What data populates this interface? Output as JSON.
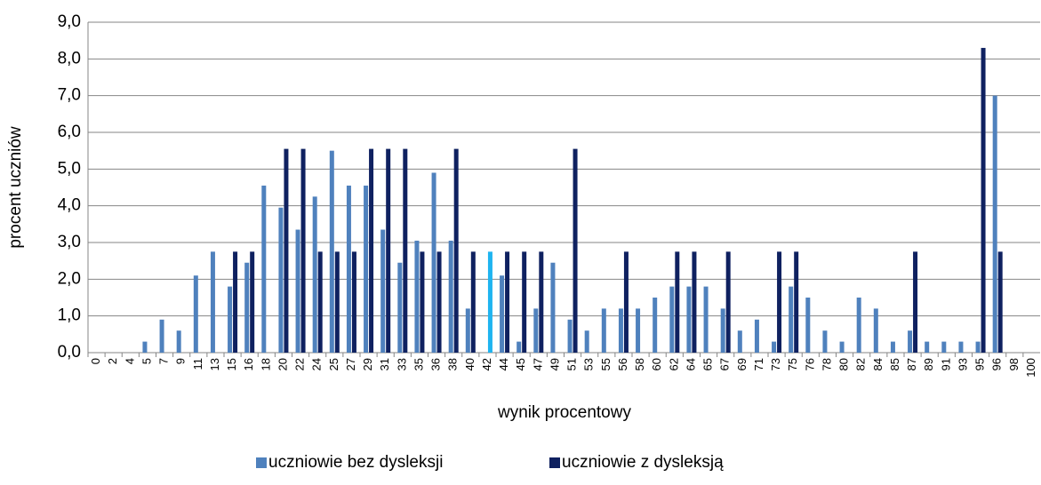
{
  "chart_data": {
    "type": "bar",
    "xlabel": "wynik procentowy",
    "ylabel": "procent uczniów",
    "categories": [
      "0",
      "2",
      "4",
      "5",
      "7",
      "9",
      "11",
      "13",
      "15",
      "16",
      "18",
      "20",
      "22",
      "24",
      "25",
      "27",
      "29",
      "31",
      "33",
      "35",
      "36",
      "38",
      "40",
      "42",
      "44",
      "45",
      "47",
      "49",
      "51",
      "53",
      "55",
      "56",
      "58",
      "60",
      "62",
      "64",
      "65",
      "67",
      "69",
      "71",
      "73",
      "75",
      "76",
      "78",
      "80",
      "82",
      "84",
      "85",
      "87",
      "89",
      "91",
      "93",
      "95",
      "96",
      "98",
      "100"
    ],
    "series": [
      {
        "name": "uczniowie bez dysleksji",
        "color": "#4f81bd",
        "values": [
          0,
          0,
          0,
          0.3,
          0.9,
          0.6,
          2.1,
          2.75,
          1.8,
          2.45,
          4.55,
          3.95,
          3.35,
          4.25,
          5.5,
          4.55,
          4.55,
          3.35,
          2.45,
          3.05,
          4.9,
          3.05,
          1.2,
          0,
          2.1,
          0.3,
          1.2,
          2.45,
          0.9,
          0.6,
          1.2,
          1.2,
          1.2,
          1.5,
          1.8,
          1.8,
          1.8,
          1.2,
          0.6,
          0.9,
          0.3,
          1.8,
          1.5,
          0.6,
          0.3,
          1.5,
          1.2,
          0.3,
          0.6,
          0.3,
          0.3,
          0.3,
          0.3,
          7.0,
          0,
          0
        ]
      },
      {
        "name": "uczniowie z dysleksją",
        "color": "#0f2160",
        "point_colors": {
          "23": "#1fb4f0"
        },
        "values": [
          0,
          0,
          0,
          0,
          0,
          0,
          0,
          0,
          2.75,
          2.75,
          0,
          5.55,
          5.55,
          2.75,
          2.75,
          2.75,
          5.55,
          5.55,
          5.55,
          2.75,
          2.75,
          5.55,
          2.75,
          2.75,
          2.75,
          2.75,
          2.75,
          0,
          5.55,
          0,
          0,
          2.75,
          0,
          0,
          2.75,
          2.75,
          0,
          2.75,
          0,
          0,
          2.75,
          2.75,
          0,
          0,
          0,
          0,
          0,
          0,
          2.75,
          0,
          0,
          0,
          8.3,
          2.75,
          0,
          0
        ]
      }
    ],
    "ylim": [
      0,
      9
    ],
    "yticks": [
      {
        "value": 0,
        "label": "0,0"
      },
      {
        "value": 1,
        "label": "1,0"
      },
      {
        "value": 2,
        "label": "2,0"
      },
      {
        "value": 3,
        "label": "3,0"
      },
      {
        "value": 4,
        "label": "4,0"
      },
      {
        "value": 5,
        "label": "5,0"
      },
      {
        "value": 6,
        "label": "6,0"
      },
      {
        "value": 7,
        "label": "7,0"
      },
      {
        "value": 8,
        "label": "8,0"
      },
      {
        "value": 9,
        "label": "9,0"
      }
    ],
    "grid": true,
    "legend": "bottom"
  }
}
